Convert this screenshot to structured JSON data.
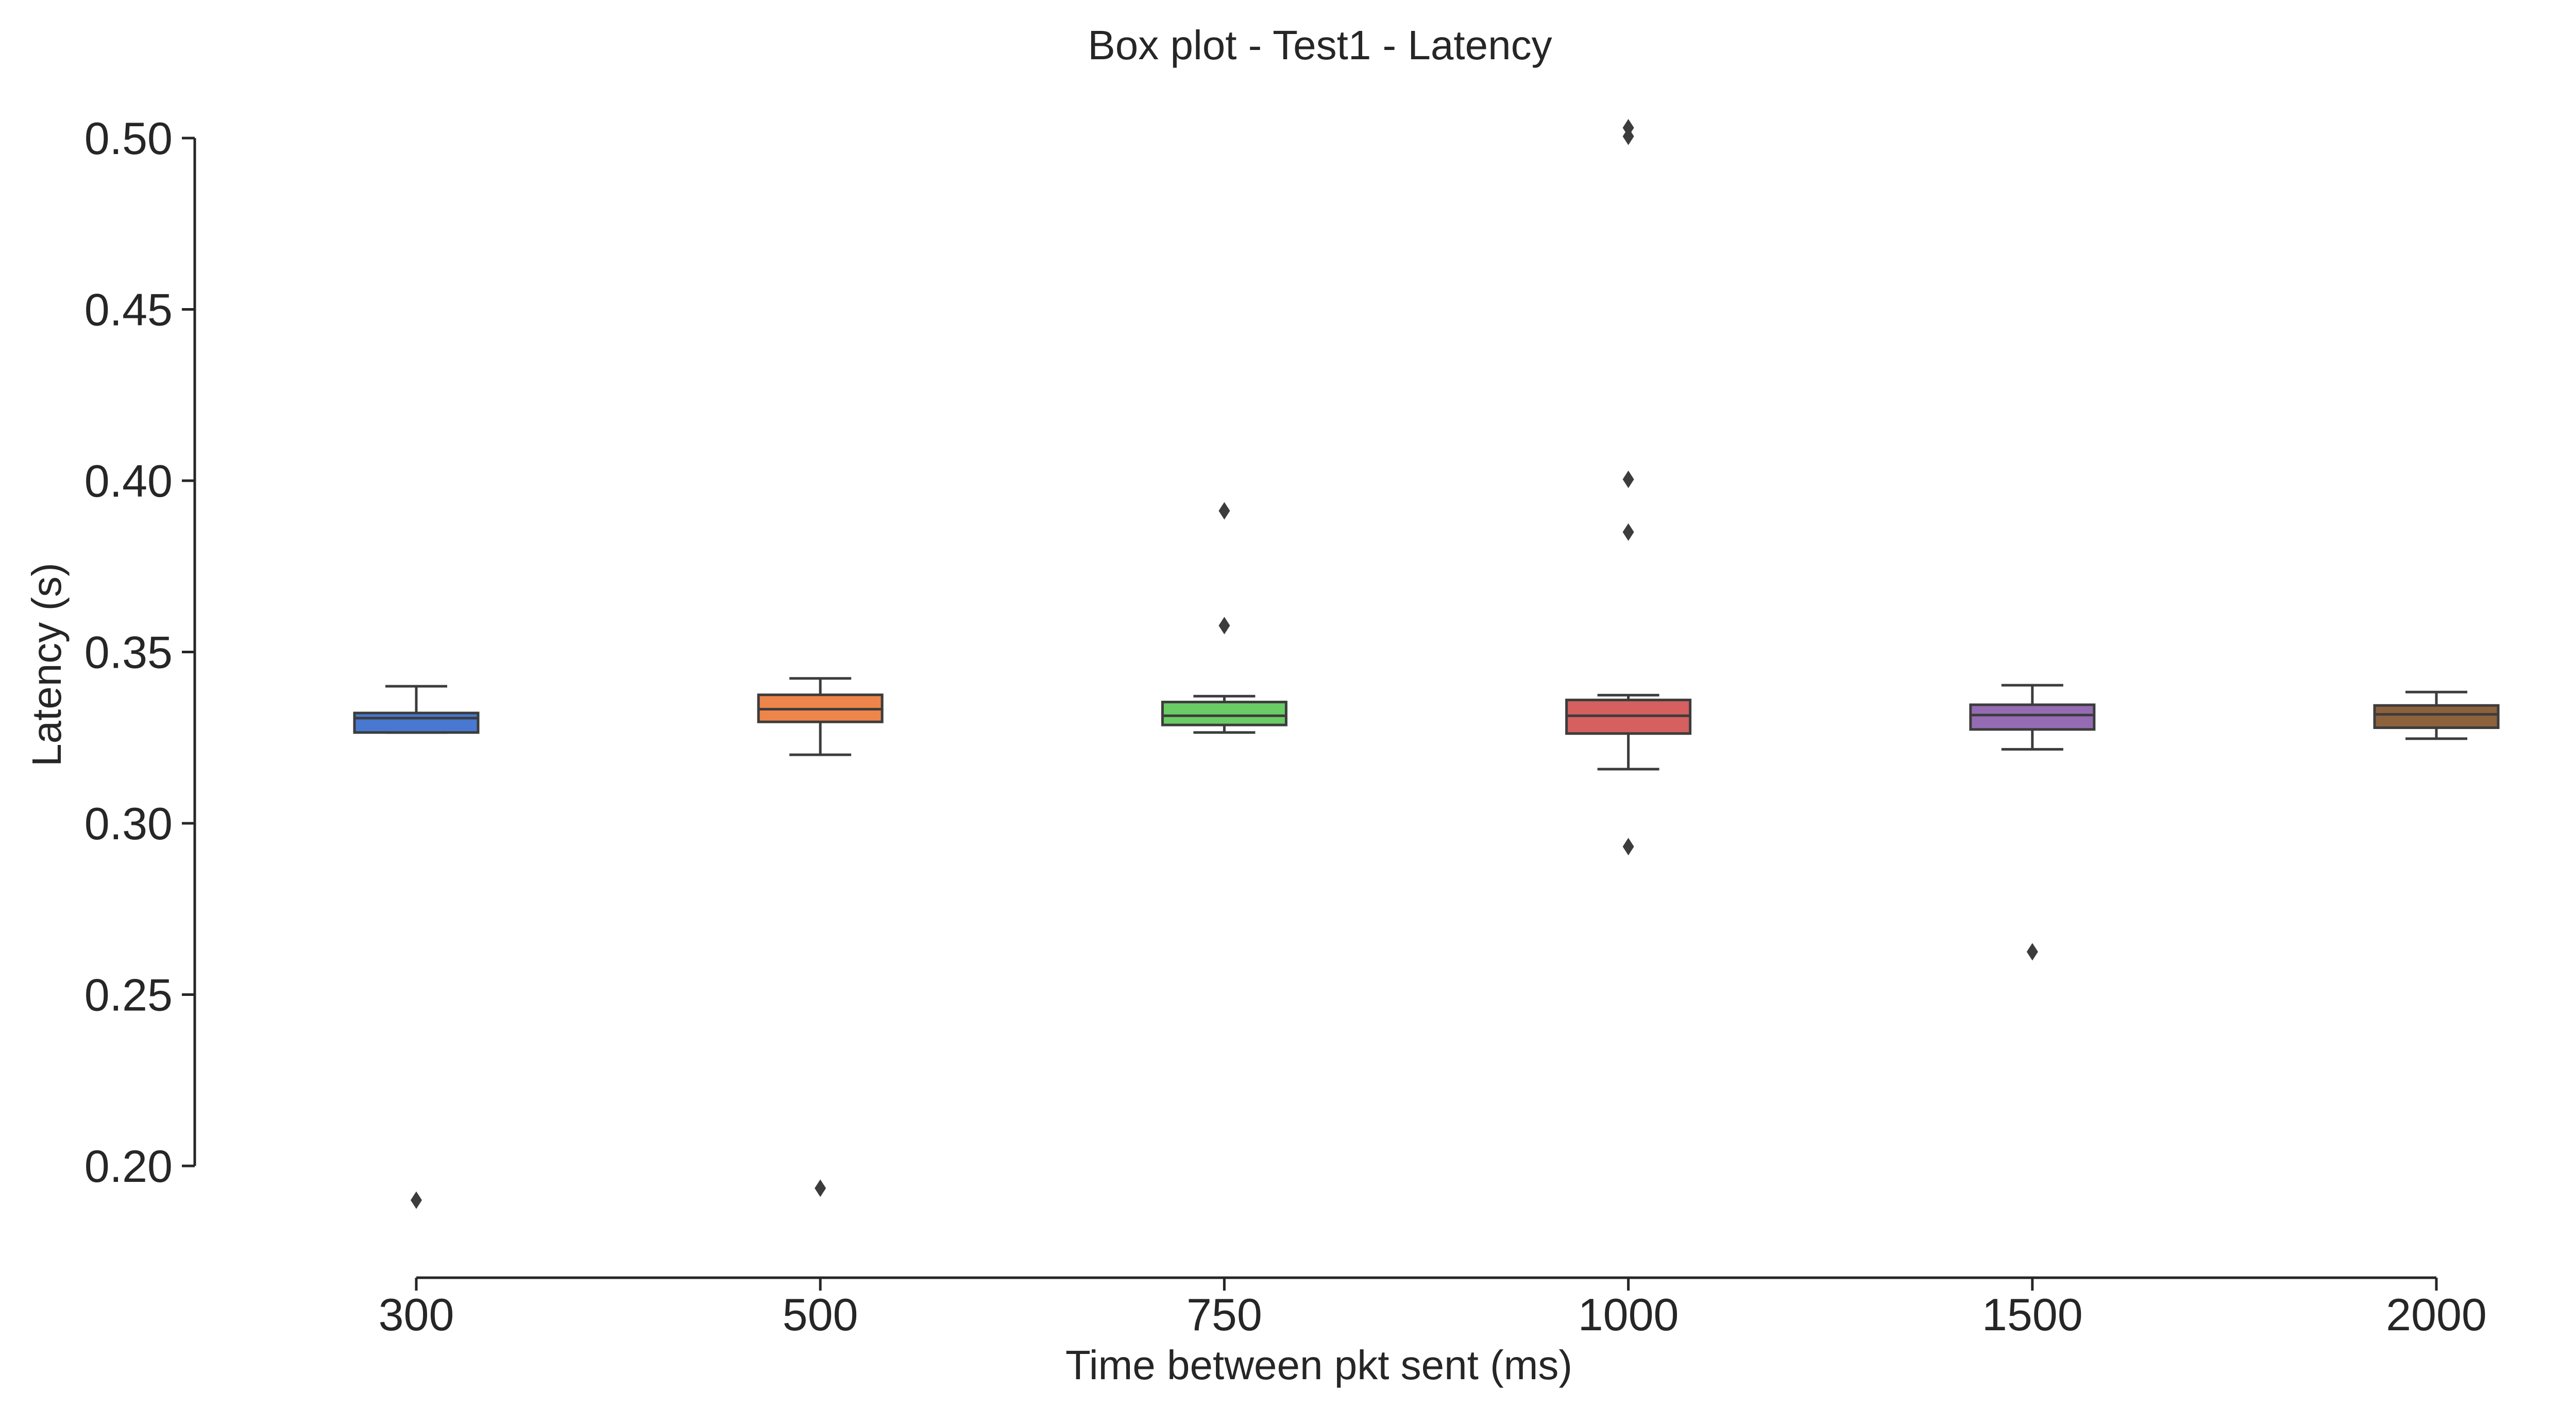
{
  "chart_data": {
    "type": "box",
    "title": "Box plot - Test1 - Latency",
    "xlabel": "Time between pkt sent (ms)",
    "ylabel": "Latency (s)",
    "ylim": [
      0.17,
      0.515
    ],
    "yticks": [
      "0.20",
      "0.25",
      "0.30",
      "0.35",
      "0.40",
      "0.45",
      "0.50"
    ],
    "categories": [
      "300",
      "500",
      "750",
      "1000",
      "1500",
      "2000"
    ],
    "grid": false,
    "boxes": [
      {
        "category": "300",
        "color": "#4878d0",
        "whislo": 0.3265,
        "q1": 0.3265,
        "med": 0.3307,
        "q3": 0.3322,
        "whishi": 0.34,
        "fliers": [
          0.19
        ]
      },
      {
        "category": "500",
        "color": "#ee854a",
        "whislo": 0.32,
        "q1": 0.3296,
        "med": 0.3333,
        "q3": 0.3375,
        "whishi": 0.3423,
        "fliers": [
          0.1935
        ]
      },
      {
        "category": "750",
        "color": "#6acc64",
        "whislo": 0.3265,
        "q1": 0.3287,
        "med": 0.3314,
        "q3": 0.3354,
        "whishi": 0.3371,
        "fliers": [
          0.3912,
          0.3577
        ]
      },
      {
        "category": "1000",
        "color": "#d65f5f",
        "whislo": 0.3158,
        "q1": 0.3262,
        "med": 0.3314,
        "q3": 0.336,
        "whishi": 0.3374,
        "fliers": [
          0.503,
          0.5005,
          0.4004,
          0.385,
          0.2932
        ]
      },
      {
        "category": "1500",
        "color": "#956cb4",
        "whislo": 0.3216,
        "q1": 0.3274,
        "med": 0.3316,
        "q3": 0.3346,
        "whishi": 0.3403,
        "fliers": [
          0.2625
        ]
      },
      {
        "category": "2000",
        "color": "#8c613c",
        "whislo": 0.3247,
        "q1": 0.3279,
        "med": 0.3318,
        "q3": 0.3344,
        "whishi": 0.3383,
        "fliers": []
      }
    ]
  }
}
